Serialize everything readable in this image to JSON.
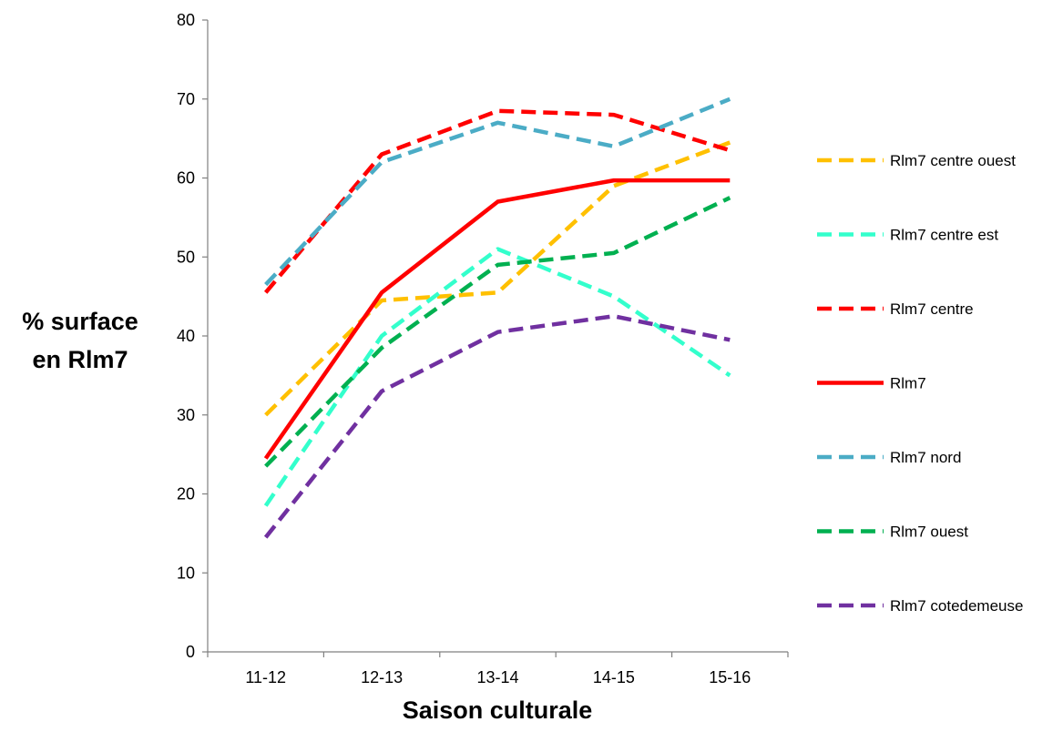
{
  "chart_data": {
    "type": "line",
    "title": "",
    "xlabel": "Saison culturale",
    "ylabel_lines": [
      "% surface",
      "en Rlm7"
    ],
    "categories": [
      "11-12",
      "12-13",
      "13-14",
      "14-15",
      "15-16"
    ],
    "ylim": [
      0,
      80
    ],
    "yticks": [
      0,
      10,
      20,
      30,
      40,
      50,
      60,
      70,
      80
    ],
    "grid": false,
    "legend_position": "right",
    "series": [
      {
        "name": "Rlm7 centre ouest",
        "color": "#FFC000",
        "dashed": true,
        "values": [
          30,
          44.5,
          45.5,
          59,
          64.5
        ]
      },
      {
        "name": "Rlm7 centre est",
        "color": "#33FFCC",
        "dashed": true,
        "values": [
          18.5,
          40,
          51,
          45,
          35
        ]
      },
      {
        "name": "Rlm7 centre",
        "color": "#FF0000",
        "dashed": true,
        "values": [
          45.5,
          63,
          68.5,
          68,
          63.5
        ]
      },
      {
        "name": "Rlm7",
        "color": "#FF0000",
        "dashed": false,
        "values": [
          24.5,
          45.5,
          57,
          59.7,
          59.7
        ]
      },
      {
        "name": "Rlm7 nord",
        "color": "#4BACC6",
        "dashed": true,
        "values": [
          46.5,
          62,
          67,
          64,
          70
        ]
      },
      {
        "name": "Rlm7 ouest",
        "color": "#00B050",
        "dashed": true,
        "values": [
          23.5,
          38.5,
          49,
          50.5,
          57.5
        ]
      },
      {
        "name": "Rlm7 cotedemeuse",
        "color": "#7030A0",
        "dashed": true,
        "values": [
          14.5,
          33,
          40.5,
          42.5,
          39.5
        ]
      }
    ]
  }
}
